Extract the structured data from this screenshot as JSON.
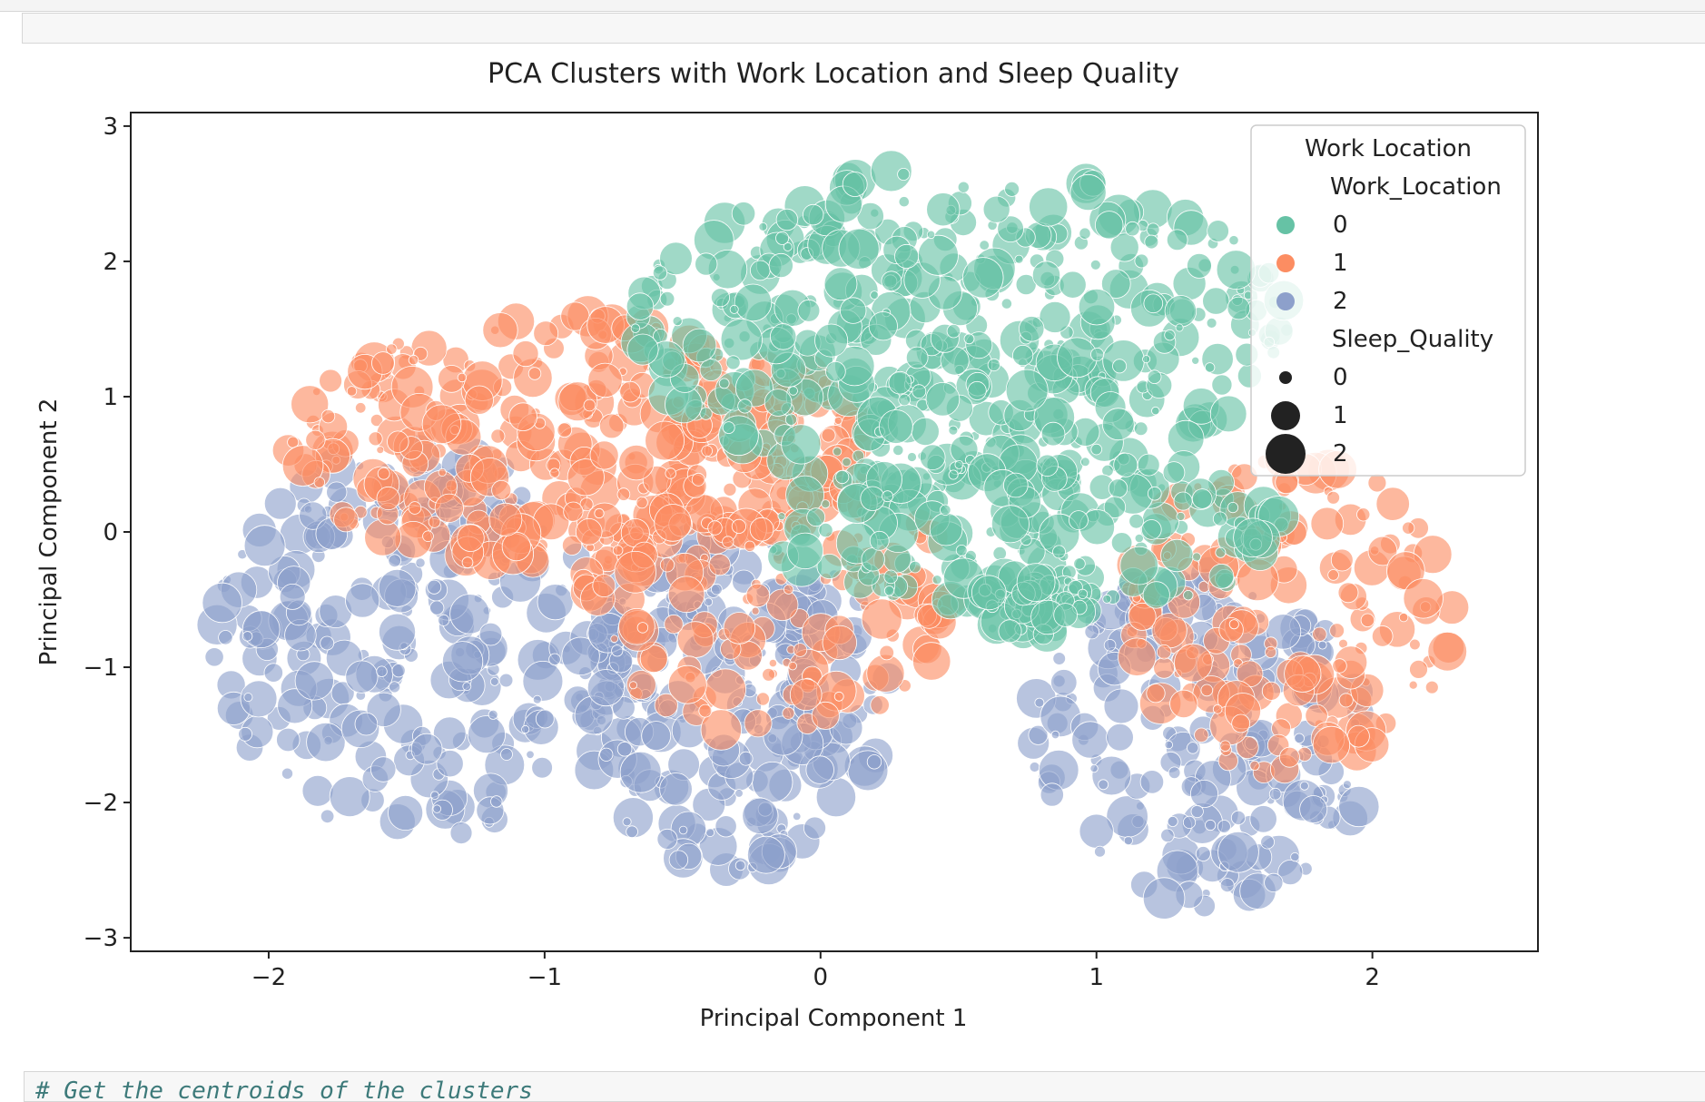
{
  "notebook": {
    "next_cell_prompt": ">",
    "next_cell_code": "# Get the centroids of the clusters"
  },
  "chart_data": {
    "type": "scatter",
    "title": "PCA Clusters with Work Location and Sleep Quality",
    "xlabel": "Principal Component 1",
    "ylabel": "Principal Component 2",
    "xlim": [
      -2.5,
      2.6
    ],
    "ylim": [
      -3.1,
      3.1
    ],
    "xticks": [
      -2,
      -1,
      0,
      1,
      2
    ],
    "yticks": [
      -3,
      -2,
      -1,
      0,
      1,
      2,
      3
    ],
    "xtick_labels": [
      "−2",
      "−1",
      "0",
      "1",
      "2"
    ],
    "ytick_labels": [
      "−3",
      "−2",
      "−1",
      "0",
      "1",
      "2",
      "3"
    ],
    "grid": false,
    "legend": {
      "placement": "top-right",
      "title": "Work Location",
      "hue_title": "Work_Location",
      "hue_entries": [
        {
          "label": "0",
          "color": "#66c2a5"
        },
        {
          "label": "1",
          "color": "#fc8d62"
        },
        {
          "label": "2",
          "color": "#8da0cb"
        }
      ],
      "size_title": "Sleep_Quality",
      "size_entries": [
        {
          "label": "0"
        },
        {
          "label": "1"
        },
        {
          "label": "2"
        }
      ]
    },
    "series": [
      {
        "name": "0",
        "color": "#66c2a5",
        "clusters": [
          {
            "x": [
              -0.7,
              1.7
            ],
            "y": [
              0.3,
              2.7
            ],
            "weight": 0.64
          },
          {
            "x": [
              -0.2,
              1.7
            ],
            "y": [
              -0.6,
              0.6
            ],
            "weight": 0.28
          },
          {
            "x": [
              0.55,
              1.0
            ],
            "y": [
              -0.8,
              -0.3
            ],
            "weight": 0.08
          }
        ]
      },
      {
        "name": "1",
        "color": "#fc8d62",
        "clusters": [
          {
            "x": [
              -1.95,
              0.15
            ],
            "y": [
              -0.3,
              1.6
            ],
            "weight": 0.5
          },
          {
            "x": [
              -0.9,
              0.5
            ],
            "y": [
              -1.5,
              0.7
            ],
            "weight": 0.25
          },
          {
            "x": [
              1.1,
              2.3
            ],
            "y": [
              -1.8,
              0.6
            ],
            "weight": 0.25
          }
        ]
      },
      {
        "name": "2",
        "color": "#8da0cb",
        "clusters": [
          {
            "x": [
              -2.2,
              -0.7
            ],
            "y": [
              -2.3,
              0.6
            ],
            "weight": 0.37
          },
          {
            "x": [
              -0.9,
              0.25
            ],
            "y": [
              -2.5,
              0.0
            ],
            "weight": 0.33
          },
          {
            "x": [
              0.75,
              2.0
            ],
            "y": [
              -2.8,
              -0.3
            ],
            "weight": 0.3
          }
        ]
      }
    ]
  }
}
